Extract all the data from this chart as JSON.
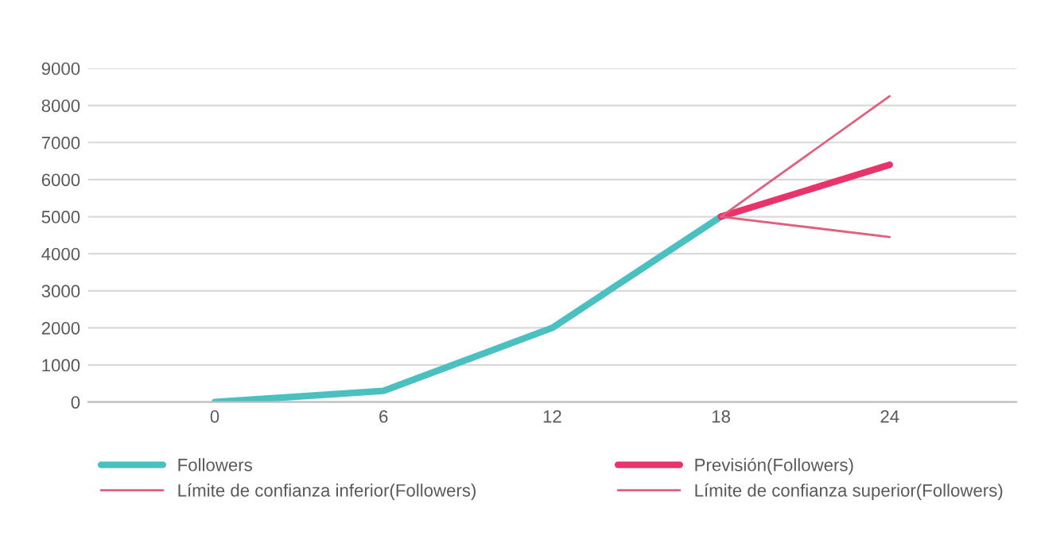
{
  "chart_data": {
    "type": "line",
    "categories": [
      "0",
      "6",
      "12",
      "18",
      "24"
    ],
    "series": [
      {
        "name": "Followers",
        "color": "#4bc0c0",
        "values": [
          0,
          300,
          2000,
          5000,
          null
        ]
      },
      {
        "name": "Previsión(Followers)",
        "color": "#e8336b",
        "values": [
          null,
          null,
          null,
          5000,
          6400
        ]
      },
      {
        "name": "Límite de confianza inferior(Followers)",
        "color": "#e0607e",
        "values": [
          null,
          null,
          null,
          5000,
          8250
        ]
      },
      {
        "name": "Límite de confianza superior(Followers)",
        "color": "#e0607e",
        "values": [
          null,
          null,
          null,
          5000,
          4450
        ]
      }
    ],
    "ylim": [
      0,
      9000
    ],
    "yticks": [
      0,
      1000,
      2000,
      3000,
      4000,
      5000,
      6000,
      7000,
      8000,
      9000
    ],
    "grid": "y",
    "legend": "bottom",
    "marker": "none",
    "line_style": "solid"
  }
}
